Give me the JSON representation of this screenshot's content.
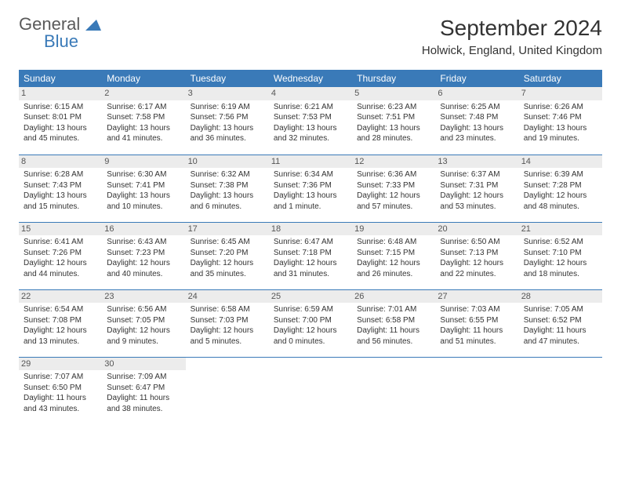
{
  "logo": {
    "general": "General",
    "blue": "Blue"
  },
  "title": "September 2024",
  "location": "Holwick, England, United Kingdom",
  "colors": {
    "header_bg": "#3a7ab8",
    "header_text": "#ffffff",
    "border": "#3a7ab8",
    "daynum_bg": "#ececec",
    "body_text": "#333333",
    "background": "#ffffff"
  },
  "days_of_week": [
    "Sunday",
    "Monday",
    "Tuesday",
    "Wednesday",
    "Thursday",
    "Friday",
    "Saturday"
  ],
  "weeks": [
    [
      {
        "n": "1",
        "sunrise": "Sunrise: 6:15 AM",
        "sunset": "Sunset: 8:01 PM",
        "day1": "Daylight: 13 hours",
        "day2": "and 45 minutes."
      },
      {
        "n": "2",
        "sunrise": "Sunrise: 6:17 AM",
        "sunset": "Sunset: 7:58 PM",
        "day1": "Daylight: 13 hours",
        "day2": "and 41 minutes."
      },
      {
        "n": "3",
        "sunrise": "Sunrise: 6:19 AM",
        "sunset": "Sunset: 7:56 PM",
        "day1": "Daylight: 13 hours",
        "day2": "and 36 minutes."
      },
      {
        "n": "4",
        "sunrise": "Sunrise: 6:21 AM",
        "sunset": "Sunset: 7:53 PM",
        "day1": "Daylight: 13 hours",
        "day2": "and 32 minutes."
      },
      {
        "n": "5",
        "sunrise": "Sunrise: 6:23 AM",
        "sunset": "Sunset: 7:51 PM",
        "day1": "Daylight: 13 hours",
        "day2": "and 28 minutes."
      },
      {
        "n": "6",
        "sunrise": "Sunrise: 6:25 AM",
        "sunset": "Sunset: 7:48 PM",
        "day1": "Daylight: 13 hours",
        "day2": "and 23 minutes."
      },
      {
        "n": "7",
        "sunrise": "Sunrise: 6:26 AM",
        "sunset": "Sunset: 7:46 PM",
        "day1": "Daylight: 13 hours",
        "day2": "and 19 minutes."
      }
    ],
    [
      {
        "n": "8",
        "sunrise": "Sunrise: 6:28 AM",
        "sunset": "Sunset: 7:43 PM",
        "day1": "Daylight: 13 hours",
        "day2": "and 15 minutes."
      },
      {
        "n": "9",
        "sunrise": "Sunrise: 6:30 AM",
        "sunset": "Sunset: 7:41 PM",
        "day1": "Daylight: 13 hours",
        "day2": "and 10 minutes."
      },
      {
        "n": "10",
        "sunrise": "Sunrise: 6:32 AM",
        "sunset": "Sunset: 7:38 PM",
        "day1": "Daylight: 13 hours",
        "day2": "and 6 minutes."
      },
      {
        "n": "11",
        "sunrise": "Sunrise: 6:34 AM",
        "sunset": "Sunset: 7:36 PM",
        "day1": "Daylight: 13 hours",
        "day2": "and 1 minute."
      },
      {
        "n": "12",
        "sunrise": "Sunrise: 6:36 AM",
        "sunset": "Sunset: 7:33 PM",
        "day1": "Daylight: 12 hours",
        "day2": "and 57 minutes."
      },
      {
        "n": "13",
        "sunrise": "Sunrise: 6:37 AM",
        "sunset": "Sunset: 7:31 PM",
        "day1": "Daylight: 12 hours",
        "day2": "and 53 minutes."
      },
      {
        "n": "14",
        "sunrise": "Sunrise: 6:39 AM",
        "sunset": "Sunset: 7:28 PM",
        "day1": "Daylight: 12 hours",
        "day2": "and 48 minutes."
      }
    ],
    [
      {
        "n": "15",
        "sunrise": "Sunrise: 6:41 AM",
        "sunset": "Sunset: 7:26 PM",
        "day1": "Daylight: 12 hours",
        "day2": "and 44 minutes."
      },
      {
        "n": "16",
        "sunrise": "Sunrise: 6:43 AM",
        "sunset": "Sunset: 7:23 PM",
        "day1": "Daylight: 12 hours",
        "day2": "and 40 minutes."
      },
      {
        "n": "17",
        "sunrise": "Sunrise: 6:45 AM",
        "sunset": "Sunset: 7:20 PM",
        "day1": "Daylight: 12 hours",
        "day2": "and 35 minutes."
      },
      {
        "n": "18",
        "sunrise": "Sunrise: 6:47 AM",
        "sunset": "Sunset: 7:18 PM",
        "day1": "Daylight: 12 hours",
        "day2": "and 31 minutes."
      },
      {
        "n": "19",
        "sunrise": "Sunrise: 6:48 AM",
        "sunset": "Sunset: 7:15 PM",
        "day1": "Daylight: 12 hours",
        "day2": "and 26 minutes."
      },
      {
        "n": "20",
        "sunrise": "Sunrise: 6:50 AM",
        "sunset": "Sunset: 7:13 PM",
        "day1": "Daylight: 12 hours",
        "day2": "and 22 minutes."
      },
      {
        "n": "21",
        "sunrise": "Sunrise: 6:52 AM",
        "sunset": "Sunset: 7:10 PM",
        "day1": "Daylight: 12 hours",
        "day2": "and 18 minutes."
      }
    ],
    [
      {
        "n": "22",
        "sunrise": "Sunrise: 6:54 AM",
        "sunset": "Sunset: 7:08 PM",
        "day1": "Daylight: 12 hours",
        "day2": "and 13 minutes."
      },
      {
        "n": "23",
        "sunrise": "Sunrise: 6:56 AM",
        "sunset": "Sunset: 7:05 PM",
        "day1": "Daylight: 12 hours",
        "day2": "and 9 minutes."
      },
      {
        "n": "24",
        "sunrise": "Sunrise: 6:58 AM",
        "sunset": "Sunset: 7:03 PM",
        "day1": "Daylight: 12 hours",
        "day2": "and 5 minutes."
      },
      {
        "n": "25",
        "sunrise": "Sunrise: 6:59 AM",
        "sunset": "Sunset: 7:00 PM",
        "day1": "Daylight: 12 hours",
        "day2": "and 0 minutes."
      },
      {
        "n": "26",
        "sunrise": "Sunrise: 7:01 AM",
        "sunset": "Sunset: 6:58 PM",
        "day1": "Daylight: 11 hours",
        "day2": "and 56 minutes."
      },
      {
        "n": "27",
        "sunrise": "Sunrise: 7:03 AM",
        "sunset": "Sunset: 6:55 PM",
        "day1": "Daylight: 11 hours",
        "day2": "and 51 minutes."
      },
      {
        "n": "28",
        "sunrise": "Sunrise: 7:05 AM",
        "sunset": "Sunset: 6:52 PM",
        "day1": "Daylight: 11 hours",
        "day2": "and 47 minutes."
      }
    ],
    [
      {
        "n": "29",
        "sunrise": "Sunrise: 7:07 AM",
        "sunset": "Sunset: 6:50 PM",
        "day1": "Daylight: 11 hours",
        "day2": "and 43 minutes."
      },
      {
        "n": "30",
        "sunrise": "Sunrise: 7:09 AM",
        "sunset": "Sunset: 6:47 PM",
        "day1": "Daylight: 11 hours",
        "day2": "and 38 minutes."
      },
      null,
      null,
      null,
      null,
      null
    ]
  ]
}
